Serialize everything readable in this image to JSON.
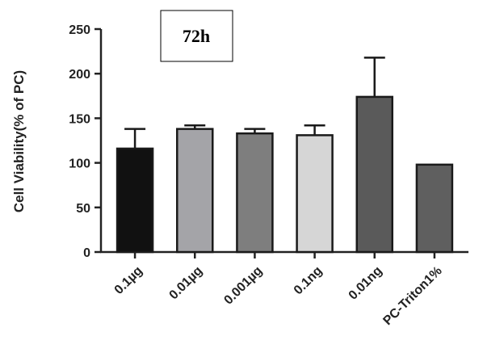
{
  "chart_data": {
    "type": "bar",
    "title": "72h",
    "ylabel": "Cell Viability(% of PC)",
    "xlabel": "",
    "ylim": [
      0,
      250
    ],
    "yticks": [
      0,
      50,
      100,
      150,
      200,
      250
    ],
    "grid": false,
    "categories": [
      "0.1µg",
      "0.01µg",
      "0.001µg",
      "0.1ng",
      "0.01ng",
      "PC-Triton1%"
    ],
    "values": [
      116,
      138,
      133,
      131,
      174,
      98
    ],
    "errors": [
      22,
      4,
      5,
      11,
      44,
      0
    ],
    "colors": [
      "#111111",
      "#a4a4a8",
      "#7e7e7e",
      "#d6d6d6",
      "#5a5a5a",
      "#5f5f5f"
    ]
  }
}
